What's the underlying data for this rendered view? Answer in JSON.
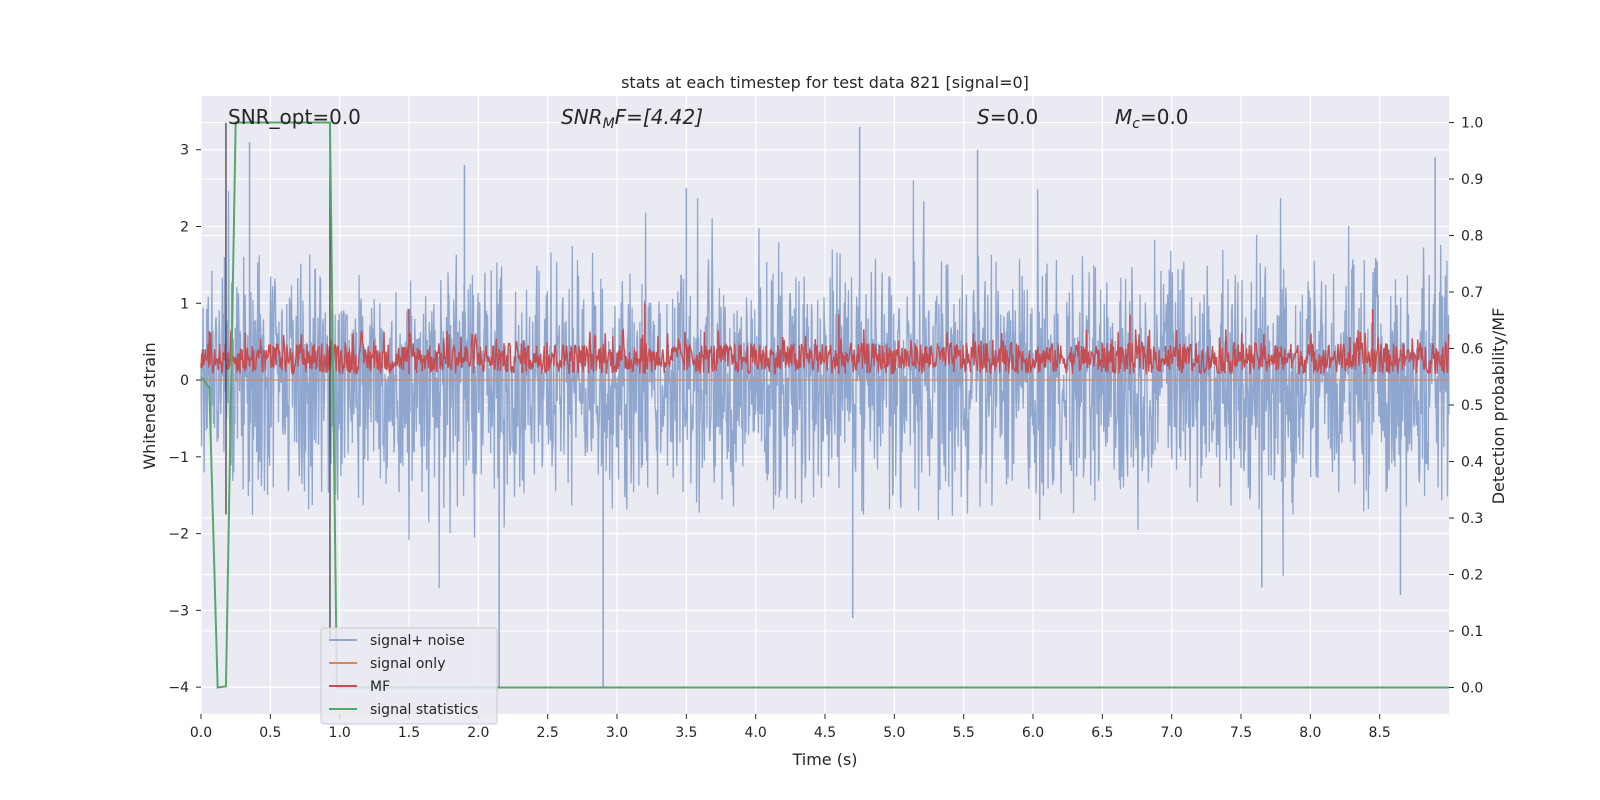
{
  "chart_data": {
    "type": "line",
    "title": "stats at each timestep for test data 821 [signal=0]",
    "xlabel": "Time (s)",
    "ylabel": "Whitened strain",
    "y2label": "Detection probability/MF",
    "xlim": [
      0.0,
      9.0
    ],
    "ylim": [
      -4.35,
      3.7
    ],
    "y2lim": [
      -0.047,
      1.047
    ],
    "x_ticks": [
      "0.0",
      "0.5",
      "1.0",
      "1.5",
      "2.0",
      "2.5",
      "3.0",
      "3.5",
      "4.0",
      "4.5",
      "5.0",
      "5.5",
      "6.0",
      "6.5",
      "7.0",
      "7.5",
      "8.0",
      "8.5"
    ],
    "y_ticks": [
      "3",
      "2",
      "1",
      "0",
      "−1",
      "−2",
      "−3",
      "−4"
    ],
    "y2_ticks": [
      "1.0",
      "0.9",
      "0.8",
      "0.7",
      "0.6",
      "0.5",
      "0.4",
      "0.3",
      "0.2",
      "0.1",
      "0.0"
    ],
    "grid": true,
    "legend_position": "bottom-left",
    "annotations": {
      "snr_opt": "SNR_opt=0.0",
      "snr_mf_name": "SNR",
      "snr_mf_sub": "M",
      "snr_mf_rest": "F=[4.42]",
      "s_name": "S",
      "s_value": "=0.0",
      "mc_name": "M",
      "mc_sub": "c",
      "mc_value": "=0.0"
    },
    "series": [
      {
        "name": "signal+ noise",
        "color": "#8fa6cf",
        "axis": "left",
        "description": "whitened noise, roughly symmetric about 0 with spikes up to about 3.3 and down to about -4",
        "peaks": [
          [
            0.35,
            3.1
          ],
          [
            1.9,
            2.8
          ],
          [
            3.5,
            2.5
          ],
          [
            4.75,
            3.3
          ],
          [
            5.6,
            3.0
          ],
          [
            8.9,
            2.9
          ],
          [
            2.15,
            -4.0
          ],
          [
            2.9,
            -4.0
          ],
          [
            4.7,
            -3.1
          ],
          [
            7.65,
            -2.7
          ],
          [
            8.65,
            -2.8
          ]
        ]
      },
      {
        "name": "signal only",
        "color": "#dd8452",
        "axis": "left",
        "constant_value": 0.0
      },
      {
        "name": "MF",
        "color": "#c44e52",
        "axis": "right",
        "description": "matched-filter output fluctuating between about 0.55 and 0.65",
        "base": 0.555,
        "spread": 0.055,
        "peaks": [
          [
            1.5,
            0.67
          ],
          [
            3.2,
            0.68
          ],
          [
            4.6,
            0.66
          ],
          [
            6.7,
            0.66
          ],
          [
            8.45,
            0.67
          ]
        ]
      },
      {
        "name": "signal statistics",
        "color": "#55a868",
        "axis": "right",
        "x": [
          0.0,
          0.06,
          0.12,
          0.18,
          0.25,
          0.93,
          0.98,
          1.0,
          9.0
        ],
        "y": [
          0.55,
          0.53,
          0.0,
          0.002,
          1.0,
          1.0,
          0.0,
          0.0,
          0.0
        ]
      }
    ],
    "markers": [
      {
        "x": 0.18,
        "y_top": 3.35,
        "y_bottom": -1.75,
        "color": "#444444"
      },
      {
        "x": 0.93,
        "y_top": 3.35,
        "y_bottom": -3.4,
        "color": "#444444"
      }
    ]
  }
}
